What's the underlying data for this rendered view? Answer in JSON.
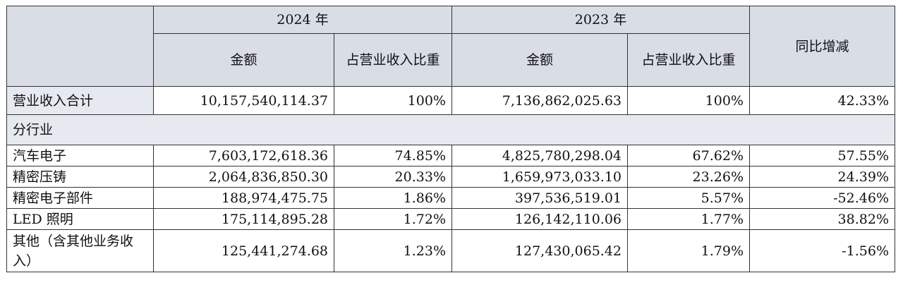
{
  "header": {
    "year_2024": "2024 年",
    "year_2023": "2023 年",
    "amount_2024": "金额",
    "ratio_2024": "占营业收入比重",
    "amount_2023": "金额",
    "ratio_2023": "占营业收入比重",
    "yoy": "同比增减"
  },
  "total": {
    "label": "营业收入合计",
    "amount_2024": "10,157,540,114.37",
    "ratio_2024": "100%",
    "amount_2023": "7,136,862,025.63",
    "ratio_2023": "100%",
    "yoy": "42.33%"
  },
  "section_label": "分行业",
  "rows": [
    {
      "label": "汽车电子",
      "amount_2024": "7,603,172,618.36",
      "ratio_2024": "74.85%",
      "amount_2023": "4,825,780,298.04",
      "ratio_2023": "67.62%",
      "yoy": "57.55%"
    },
    {
      "label": "精密压铸",
      "amount_2024": "2,064,836,850.30",
      "ratio_2024": "20.33%",
      "amount_2023": "1,659,973,033.10",
      "ratio_2023": "23.26%",
      "yoy": "24.39%"
    },
    {
      "label": "精密电子部件",
      "amount_2024": "188,974,475.75",
      "ratio_2024": "1.86%",
      "amount_2023": "397,536,519.01",
      "ratio_2023": "5.57%",
      "yoy": "-52.46%"
    },
    {
      "label": "LED 照明",
      "amount_2024": "175,114,895.28",
      "ratio_2024": "1.72%",
      "amount_2023": "126,142,110.06",
      "ratio_2023": "1.77%",
      "yoy": "38.82%"
    },
    {
      "label": "其他（含其他业务收入）",
      "amount_2024": "125,441,274.68",
      "ratio_2024": "1.23%",
      "amount_2023": "127,430,065.42",
      "ratio_2023": "1.79%",
      "yoy": "-1.56%"
    }
  ]
}
